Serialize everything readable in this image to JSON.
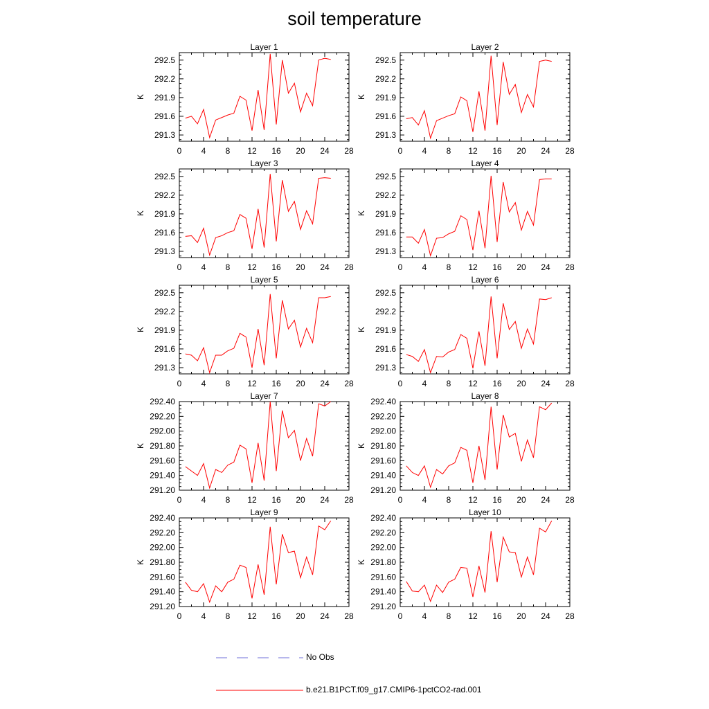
{
  "title": "soil temperature",
  "chart_data": [
    {
      "type": "line",
      "title": "Layer 1",
      "ylabel": "K",
      "xlim": [
        0,
        28
      ],
      "xticks": [
        0,
        4,
        8,
        12,
        16,
        20,
        24,
        28
      ],
      "ylim": [
        291.2,
        292.62
      ],
      "yticks": [
        "291.3",
        "291.6",
        "291.9",
        "292.2",
        "292.5"
      ],
      "series": [
        {
          "name": "b.e21.B1PCT.f09_g17.CMIP6-1pctCO2-rad.001",
          "color": "#ff0000",
          "x": [
            1,
            2,
            3,
            4,
            5,
            6,
            7,
            8,
            9,
            10,
            11,
            12,
            13,
            14,
            15,
            16,
            17,
            18,
            19,
            20,
            21,
            22,
            23,
            24,
            25
          ],
          "y": [
            291.57,
            291.6,
            291.48,
            291.71,
            291.26,
            291.54,
            291.58,
            291.62,
            291.65,
            291.92,
            291.86,
            291.37,
            292.02,
            291.38,
            292.6,
            291.47,
            292.5,
            291.97,
            292.13,
            291.67,
            291.97,
            291.77,
            292.5,
            292.53,
            292.51
          ]
        }
      ]
    },
    {
      "type": "line",
      "title": "Layer 2",
      "ylabel": "K",
      "xlim": [
        0,
        28
      ],
      "xticks": [
        0,
        4,
        8,
        12,
        16,
        20,
        24,
        28
      ],
      "ylim": [
        291.2,
        292.62
      ],
      "yticks": [
        "291.3",
        "291.6",
        "291.9",
        "292.2",
        "292.5"
      ],
      "series": [
        {
          "name": "b.e21.B1PCT.f09_g17.CMIP6-1pctCO2-rad.001",
          "color": "#ff0000",
          "x": [
            1,
            2,
            3,
            4,
            5,
            6,
            7,
            8,
            9,
            10,
            11,
            12,
            13,
            14,
            15,
            16,
            17,
            18,
            19,
            20,
            21,
            22,
            23,
            24,
            25
          ],
          "y": [
            291.56,
            291.58,
            291.46,
            291.69,
            291.25,
            291.53,
            291.57,
            291.61,
            291.64,
            291.91,
            291.85,
            291.35,
            292.0,
            291.37,
            292.57,
            291.46,
            292.47,
            291.95,
            292.11,
            291.66,
            291.95,
            291.75,
            292.48,
            292.5,
            292.48
          ]
        }
      ]
    },
    {
      "type": "line",
      "title": "Layer 3",
      "ylabel": "K",
      "xlim": [
        0,
        28
      ],
      "xticks": [
        0,
        4,
        8,
        12,
        16,
        20,
        24,
        28
      ],
      "ylim": [
        291.2,
        292.62
      ],
      "yticks": [
        "291.3",
        "291.6",
        "291.9",
        "292.2",
        "292.5"
      ],
      "series": [
        {
          "name": "b.e21.B1PCT.f09_g17.CMIP6-1pctCO2-rad.001",
          "color": "#ff0000",
          "x": [
            1,
            2,
            3,
            4,
            5,
            6,
            7,
            8,
            9,
            10,
            11,
            12,
            13,
            14,
            15,
            16,
            17,
            18,
            19,
            20,
            21,
            22,
            23,
            24,
            25
          ],
          "y": [
            291.54,
            291.55,
            291.44,
            291.67,
            291.24,
            291.52,
            291.55,
            291.6,
            291.63,
            291.89,
            291.83,
            291.34,
            291.98,
            291.36,
            292.54,
            291.46,
            292.44,
            291.94,
            292.1,
            291.65,
            291.95,
            291.74,
            292.47,
            292.48,
            292.47
          ]
        }
      ]
    },
    {
      "type": "line",
      "title": "Layer 4",
      "ylabel": "K",
      "xlim": [
        0,
        28
      ],
      "xticks": [
        0,
        4,
        8,
        12,
        16,
        20,
        24,
        28
      ],
      "ylim": [
        291.2,
        292.62
      ],
      "yticks": [
        "291.3",
        "291.6",
        "291.9",
        "292.2",
        "292.5"
      ],
      "series": [
        {
          "name": "b.e21.B1PCT.f09_g17.CMIP6-1pctCO2-rad.001",
          "color": "#ff0000",
          "x": [
            1,
            2,
            3,
            4,
            5,
            6,
            7,
            8,
            9,
            10,
            11,
            12,
            13,
            14,
            15,
            16,
            17,
            18,
            19,
            20,
            21,
            22,
            23,
            24,
            25
          ],
          "y": [
            291.53,
            291.53,
            291.43,
            291.65,
            291.23,
            291.51,
            291.52,
            291.58,
            291.62,
            291.87,
            291.81,
            291.32,
            291.95,
            291.35,
            292.51,
            291.45,
            292.41,
            291.93,
            292.08,
            291.64,
            291.94,
            291.72,
            292.45,
            292.46,
            292.46
          ]
        }
      ]
    },
    {
      "type": "line",
      "title": "Layer 5",
      "ylabel": "K",
      "xlim": [
        0,
        28
      ],
      "xticks": [
        0,
        4,
        8,
        12,
        16,
        20,
        24,
        28
      ],
      "ylim": [
        291.2,
        292.62
      ],
      "yticks": [
        "291.3",
        "291.6",
        "291.9",
        "292.2",
        "292.5"
      ],
      "series": [
        {
          "name": "b.e21.B1PCT.f09_g17.CMIP6-1pctCO2-rad.001",
          "color": "#ff0000",
          "x": [
            1,
            2,
            3,
            4,
            5,
            6,
            7,
            8,
            9,
            10,
            11,
            12,
            13,
            14,
            15,
            16,
            17,
            18,
            19,
            20,
            21,
            22,
            23,
            24,
            25
          ],
          "y": [
            291.52,
            291.5,
            291.41,
            291.62,
            291.22,
            291.5,
            291.5,
            291.57,
            291.61,
            291.85,
            291.79,
            291.3,
            291.92,
            291.34,
            292.48,
            291.45,
            292.38,
            291.92,
            292.06,
            291.63,
            291.93,
            291.7,
            292.42,
            292.42,
            292.44
          ]
        }
      ]
    },
    {
      "type": "line",
      "title": "Layer 6",
      "ylabel": "K",
      "xlim": [
        0,
        28
      ],
      "xticks": [
        0,
        4,
        8,
        12,
        16,
        20,
        24,
        28
      ],
      "ylim": [
        291.2,
        292.62
      ],
      "yticks": [
        "291.3",
        "291.6",
        "291.9",
        "292.2",
        "292.5"
      ],
      "series": [
        {
          "name": "b.e21.B1PCT.f09_g17.CMIP6-1pctCO2-rad.001",
          "color": "#ff0000",
          "x": [
            1,
            2,
            3,
            4,
            5,
            6,
            7,
            8,
            9,
            10,
            11,
            12,
            13,
            14,
            15,
            16,
            17,
            18,
            19,
            20,
            21,
            22,
            23,
            24,
            25
          ],
          "y": [
            291.51,
            291.48,
            291.4,
            291.59,
            291.22,
            291.48,
            291.47,
            291.55,
            291.59,
            291.83,
            291.77,
            291.29,
            291.88,
            291.33,
            292.44,
            291.45,
            292.33,
            291.91,
            292.04,
            291.61,
            291.92,
            291.68,
            292.4,
            292.39,
            292.42
          ]
        }
      ]
    },
    {
      "type": "line",
      "title": "Layer 7",
      "ylabel": "K",
      "xlim": [
        0,
        28
      ],
      "xticks": [
        0,
        4,
        8,
        12,
        16,
        20,
        24,
        28
      ],
      "ylim": [
        291.2,
        292.4
      ],
      "yticks": [
        "291.20",
        "291.40",
        "291.60",
        "291.80",
        "292.00",
        "292.20",
        "292.40"
      ],
      "series": [
        {
          "name": "b.e21.B1PCT.f09_g17.CMIP6-1pctCO2-rad.001",
          "color": "#ff0000",
          "x": [
            1,
            2,
            3,
            4,
            5,
            6,
            7,
            8,
            9,
            10,
            11,
            12,
            13,
            14,
            15,
            16,
            17,
            18,
            19,
            20,
            21,
            22,
            23,
            24,
            25
          ],
          "y": [
            291.52,
            291.46,
            291.4,
            291.56,
            291.23,
            291.48,
            291.44,
            291.54,
            291.58,
            291.81,
            291.76,
            291.3,
            291.84,
            291.33,
            292.4,
            291.46,
            292.28,
            291.91,
            292.01,
            291.6,
            291.9,
            291.66,
            292.37,
            292.34,
            292.4
          ]
        }
      ]
    },
    {
      "type": "line",
      "title": "Layer 8",
      "ylabel": "K",
      "xlim": [
        0,
        28
      ],
      "xticks": [
        0,
        4,
        8,
        12,
        16,
        20,
        24,
        28
      ],
      "ylim": [
        291.2,
        292.4
      ],
      "yticks": [
        "291.20",
        "291.40",
        "291.60",
        "291.80",
        "292.00",
        "292.20",
        "292.40"
      ],
      "series": [
        {
          "name": "b.e21.B1PCT.f09_g17.CMIP6-1pctCO2-rad.001",
          "color": "#ff0000",
          "x": [
            1,
            2,
            3,
            4,
            5,
            6,
            7,
            8,
            9,
            10,
            11,
            12,
            13,
            14,
            15,
            16,
            17,
            18,
            19,
            20,
            21,
            22,
            23,
            24,
            25
          ],
          "y": [
            291.53,
            291.44,
            291.4,
            291.53,
            291.24,
            291.48,
            291.42,
            291.53,
            291.57,
            291.78,
            291.74,
            291.3,
            291.8,
            291.34,
            292.33,
            291.48,
            292.22,
            291.92,
            291.97,
            291.59,
            291.88,
            291.64,
            292.33,
            292.29,
            292.38
          ]
        }
      ]
    },
    {
      "type": "line",
      "title": "Layer 9",
      "ylabel": "K",
      "xlim": [
        0,
        28
      ],
      "xticks": [
        0,
        4,
        8,
        12,
        16,
        20,
        24,
        28
      ],
      "ylim": [
        291.2,
        292.4
      ],
      "yticks": [
        "291.20",
        "291.40",
        "291.60",
        "291.80",
        "292.00",
        "292.20",
        "292.40"
      ],
      "series": [
        {
          "name": "b.e21.B1PCT.f09_g17.CMIP6-1pctCO2-rad.001",
          "color": "#ff0000",
          "x": [
            1,
            2,
            3,
            4,
            5,
            6,
            7,
            8,
            9,
            10,
            11,
            12,
            13,
            14,
            15,
            16,
            17,
            18,
            19,
            20,
            21,
            22,
            23,
            24,
            25
          ],
          "y": [
            291.53,
            291.42,
            291.4,
            291.51,
            291.26,
            291.48,
            291.4,
            291.53,
            291.57,
            291.76,
            291.73,
            291.31,
            291.77,
            291.36,
            292.28,
            291.5,
            292.18,
            291.93,
            291.95,
            291.59,
            291.87,
            291.63,
            292.29,
            292.24,
            292.36
          ]
        }
      ]
    },
    {
      "type": "line",
      "title": "Layer 10",
      "ylabel": "K",
      "xlim": [
        0,
        28
      ],
      "xticks": [
        0,
        4,
        8,
        12,
        16,
        20,
        24,
        28
      ],
      "ylim": [
        291.2,
        292.4
      ],
      "yticks": [
        "291.20",
        "291.40",
        "291.60",
        "291.80",
        "292.00",
        "292.20",
        "292.40"
      ],
      "series": [
        {
          "name": "b.e21.B1PCT.f09_g17.CMIP6-1pctCO2-rad.001",
          "color": "#ff0000",
          "x": [
            1,
            2,
            3,
            4,
            5,
            6,
            7,
            8,
            9,
            10,
            11,
            12,
            13,
            14,
            15,
            16,
            17,
            18,
            19,
            20,
            21,
            22,
            23,
            24,
            25
          ],
          "y": [
            291.54,
            291.41,
            291.4,
            291.49,
            291.27,
            291.49,
            291.39,
            291.53,
            291.57,
            291.73,
            291.72,
            291.33,
            291.75,
            291.39,
            292.22,
            291.53,
            292.14,
            291.94,
            291.93,
            291.6,
            291.87,
            291.63,
            292.26,
            292.21,
            292.36
          ]
        }
      ]
    }
  ],
  "legend": {
    "items": [
      {
        "label": "No Obs",
        "color": "#6f6fd8",
        "style": "dashed"
      },
      {
        "label": "b.e21.B1PCT.f09_g17.CMIP6-1pctCO2-rad.001",
        "color": "#ff0000",
        "style": "solid"
      }
    ]
  }
}
